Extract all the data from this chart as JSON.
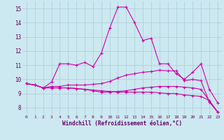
{
  "background_color": "#cce8f0",
  "grid_color": "#aaccd8",
  "line_color": "#cc00aa",
  "xlabel": "Windchill (Refroidissement éolien,°C)",
  "ylim": [
    7.5,
    15.5
  ],
  "xlim": [
    -0.5,
    23.5
  ],
  "yticks": [
    8,
    9,
    10,
    11,
    12,
    13,
    14,
    15
  ],
  "xticks": [
    0,
    1,
    2,
    3,
    4,
    5,
    6,
    7,
    8,
    9,
    10,
    11,
    12,
    13,
    14,
    15,
    16,
    17,
    18,
    19,
    20,
    21,
    22,
    23
  ],
  "series": [
    {
      "x": [
        0,
        1,
        2,
        3,
        4,
        5,
        6,
        7,
        8,
        9,
        10,
        11,
        12,
        13,
        14,
        15,
        16,
        17,
        18,
        19,
        20,
        21,
        22,
        23
      ],
      "y": [
        9.7,
        9.6,
        9.4,
        9.8,
        11.1,
        11.1,
        11.0,
        11.2,
        10.9,
        11.85,
        13.6,
        15.1,
        15.1,
        14.0,
        12.75,
        12.9,
        11.1,
        11.1,
        10.4,
        10.0,
        10.5,
        11.1,
        9.3,
        8.35
      ]
    },
    {
      "x": [
        0,
        1,
        2,
        3,
        4,
        5,
        6,
        7,
        8,
        9,
        10,
        11,
        12,
        13,
        14,
        15,
        16,
        17,
        18,
        19,
        20,
        21,
        22,
        23
      ],
      "y": [
        9.7,
        9.6,
        9.4,
        9.5,
        9.5,
        9.6,
        9.6,
        9.6,
        9.65,
        9.7,
        9.85,
        10.1,
        10.3,
        10.4,
        10.5,
        10.55,
        10.65,
        10.6,
        10.6,
        9.9,
        10.0,
        9.9,
        8.4,
        7.7
      ]
    },
    {
      "x": [
        0,
        1,
        2,
        3,
        4,
        5,
        6,
        7,
        8,
        9,
        10,
        11,
        12,
        13,
        14,
        15,
        16,
        17,
        18,
        19,
        20,
        21,
        22,
        23
      ],
      "y": [
        9.7,
        9.6,
        9.4,
        9.4,
        9.4,
        9.4,
        9.35,
        9.3,
        9.25,
        9.2,
        9.15,
        9.1,
        9.1,
        9.1,
        9.1,
        9.1,
        9.05,
        9.0,
        9.0,
        8.9,
        8.85,
        8.8,
        8.5,
        7.7
      ]
    },
    {
      "x": [
        0,
        1,
        2,
        3,
        4,
        5,
        6,
        7,
        8,
        9,
        10,
        11,
        12,
        13,
        14,
        15,
        16,
        17,
        18,
        19,
        20,
        21,
        22,
        23
      ],
      "y": [
        9.7,
        9.6,
        9.4,
        9.4,
        9.4,
        9.4,
        9.35,
        9.3,
        9.2,
        9.1,
        9.1,
        9.15,
        9.2,
        9.3,
        9.4,
        9.45,
        9.5,
        9.5,
        9.5,
        9.45,
        9.4,
        9.3,
        8.5,
        7.7
      ]
    }
  ]
}
